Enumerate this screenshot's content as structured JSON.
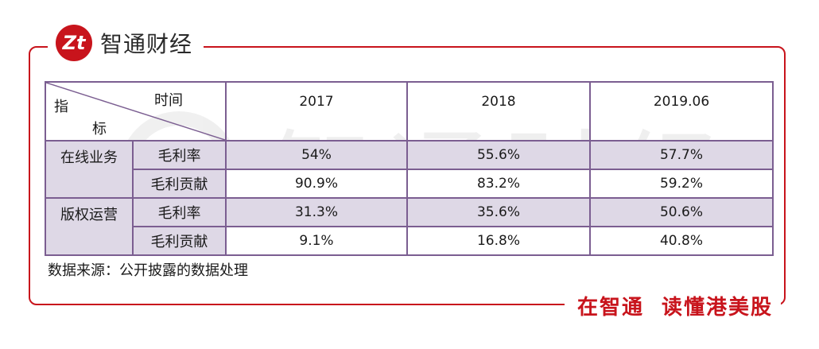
{
  "brand": {
    "logo_text": "Zt",
    "name": "智通财经"
  },
  "slogan": {
    "part1": "在智通",
    "part2": "读懂港美股"
  },
  "watermark": {
    "text": "智通财经"
  },
  "table": {
    "header": {
      "time_label": "时间",
      "indicator_top": "指",
      "indicator_bottom": "标",
      "years": [
        "2017",
        "2018",
        "2019.06"
      ]
    },
    "groups": [
      {
        "name": "在线业务",
        "rows": [
          {
            "metric": "毛利率",
            "values": [
              "54%",
              "55.6%",
              "57.7%"
            ]
          },
          {
            "metric": "毛利贡献",
            "values": [
              "90.9%",
              "83.2%",
              "59.2%"
            ]
          }
        ]
      },
      {
        "name": "版权运营",
        "rows": [
          {
            "metric": "毛利率",
            "values": [
              "31.3%",
              "35.6%",
              "50.6%"
            ]
          },
          {
            "metric": "毛利贡献",
            "values": [
              "9.1%",
              "16.8%",
              "40.8%"
            ]
          }
        ]
      }
    ]
  },
  "source_note": "数据来源：公开披露的数据处理",
  "colors": {
    "accent": "#c8141c",
    "table_border": "#7b5e91",
    "row_shade": "#ded8e6"
  }
}
